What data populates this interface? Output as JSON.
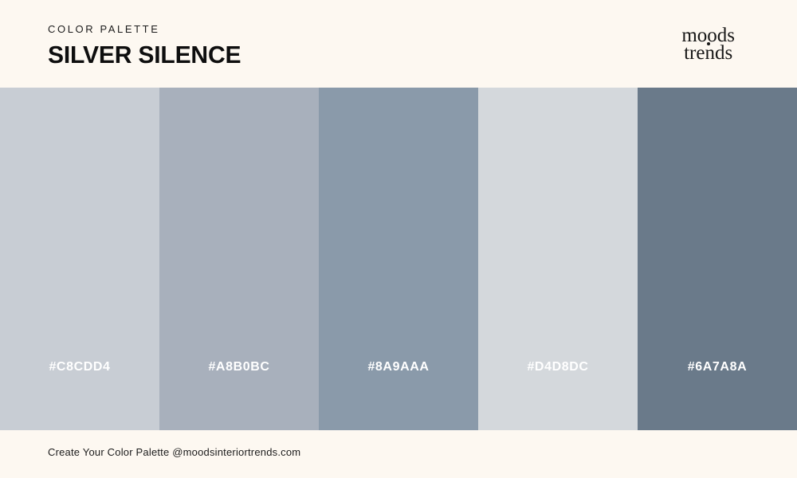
{
  "header": {
    "eyebrow": "COLOR PALETTE",
    "title": "SILVER SILENCE",
    "logo": {
      "line1": "moods",
      "line2": "trends"
    }
  },
  "palette": {
    "name": "Silver Silence",
    "swatches": [
      {
        "hex": "#C8CDD4"
      },
      {
        "hex": "#A8B0BC"
      },
      {
        "hex": "#8A9AAA"
      },
      {
        "hex": "#D4D8DC"
      },
      {
        "hex": "#6A7A8A"
      }
    ]
  },
  "footer": {
    "credit": "Create Your Color Palette @moodsinteriortrends.com"
  },
  "colors": {
    "background": "#FDF8F1",
    "text": "#1C1C1C",
    "swatch_label": "#FFFFFF"
  }
}
